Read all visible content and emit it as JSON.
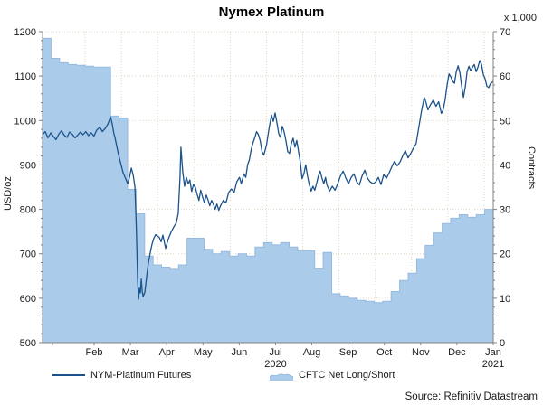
{
  "chart": {
    "title": "Nymex Platinum",
    "unit_note": "x 1,000",
    "left_axis_label": "USD/oz",
    "right_axis_label": "Contracts",
    "legend": {
      "series1_label": "NYM-Platinum Futures",
      "series2_label": "CFTC Net Long/Short"
    },
    "source": "Source: Refinitiv Datastream",
    "colors": {
      "line": "#1b528b",
      "area_fill": "#aacbea",
      "area_stroke": "#94bbe0",
      "grid": "#dbd7c2",
      "axis": "#808080"
    }
  },
  "chart_data": {
    "type": "line+area",
    "title": "Nymex Platinum",
    "left_axis": {
      "label": "USD/oz",
      "min": 500,
      "max": 1200,
      "step": 100,
      "minor_step": 20,
      "tick_labels": [
        "500",
        "600",
        "700",
        "800",
        "900",
        "1000",
        "1100",
        "1200"
      ]
    },
    "right_axis": {
      "label": "Contracts",
      "unit": "x 1,000",
      "min": 0,
      "max": 70,
      "step": 10,
      "minor_step": 2,
      "tick_labels": [
        "0",
        "10",
        "20",
        "30",
        "40",
        "50",
        "60",
        "70"
      ]
    },
    "x_axis": {
      "months": [
        {
          "label": "Feb"
        },
        {
          "label": "Mar"
        },
        {
          "label": "Apr"
        },
        {
          "label": "May"
        },
        {
          "label": "Jun"
        },
        {
          "label": "Jul",
          "year": "2020"
        },
        {
          "label": "Aug"
        },
        {
          "label": "Sep"
        },
        {
          "label": "Oct"
        },
        {
          "label": "Nov"
        },
        {
          "label": "Dec"
        },
        {
          "label": "Jan",
          "year": "2021"
        }
      ],
      "range_note": "late Jan 2020 - late Jan 2021",
      "grid": true
    },
    "series": [
      {
        "name": "NYM-Platinum Futures",
        "type": "line",
        "axis": "left",
        "color": "#1b528b",
        "points": [
          [
            0,
            968
          ],
          [
            0.006,
            975
          ],
          [
            0.012,
            961
          ],
          [
            0.018,
            972
          ],
          [
            0.024,
            964
          ],
          [
            0.03,
            957
          ],
          [
            0.036,
            969
          ],
          [
            0.042,
            977
          ],
          [
            0.048,
            967
          ],
          [
            0.054,
            962
          ],
          [
            0.06,
            974
          ],
          [
            0.066,
            969
          ],
          [
            0.072,
            961
          ],
          [
            0.078,
            967
          ],
          [
            0.084,
            974
          ],
          [
            0.09,
            968
          ],
          [
            0.096,
            975
          ],
          [
            0.102,
            966
          ],
          [
            0.108,
            972
          ],
          [
            0.114,
            965
          ],
          [
            0.12,
            978
          ],
          [
            0.127,
            985
          ],
          [
            0.133,
            975
          ],
          [
            0.139,
            982
          ],
          [
            0.145,
            992
          ],
          [
            0.151,
            1008
          ],
          [
            0.155,
            990
          ],
          [
            0.158,
            972
          ],
          [
            0.161,
            960
          ],
          [
            0.167,
            930
          ],
          [
            0.173,
            905
          ],
          [
            0.179,
            882
          ],
          [
            0.185,
            868
          ],
          [
            0.189,
            858
          ],
          [
            0.193,
            872
          ],
          [
            0.197,
            893
          ],
          [
            0.201,
            878
          ],
          [
            0.205,
            850
          ],
          [
            0.208,
            760
          ],
          [
            0.211,
            640
          ],
          [
            0.213,
            598
          ],
          [
            0.215,
            622
          ],
          [
            0.217,
            612
          ],
          [
            0.219,
            643
          ],
          [
            0.221,
            616
          ],
          [
            0.223,
            604
          ],
          [
            0.227,
            613
          ],
          [
            0.231,
            648
          ],
          [
            0.235,
            680
          ],
          [
            0.239,
            702
          ],
          [
            0.243,
            722
          ],
          [
            0.247,
            735
          ],
          [
            0.251,
            743
          ],
          [
            0.259,
            737
          ],
          [
            0.263,
            727
          ],
          [
            0.267,
            742
          ],
          [
            0.273,
            712
          ],
          [
            0.279,
            733
          ],
          [
            0.285,
            748
          ],
          [
            0.291,
            760
          ],
          [
            0.297,
            770
          ],
          [
            0.301,
            790
          ],
          [
            0.305,
            872
          ],
          [
            0.307,
            940
          ],
          [
            0.311,
            885
          ],
          [
            0.315,
            852
          ],
          [
            0.319,
            872
          ],
          [
            0.323,
            858
          ],
          [
            0.327,
            866
          ],
          [
            0.331,
            840
          ],
          [
            0.335,
            856
          ],
          [
            0.339,
            850
          ],
          [
            0.343,
            834
          ],
          [
            0.347,
            820
          ],
          [
            0.351,
            843
          ],
          [
            0.355,
            828
          ],
          [
            0.359,
            815
          ],
          [
            0.363,
            832
          ],
          [
            0.367,
            822
          ],
          [
            0.371,
            808
          ],
          [
            0.375,
            820
          ],
          [
            0.379,
            812
          ],
          [
            0.383,
            800
          ],
          [
            0.387,
            812
          ],
          [
            0.391,
            798
          ],
          [
            0.395,
            808
          ],
          [
            0.401,
            820
          ],
          [
            0.407,
            815
          ],
          [
            0.413,
            838
          ],
          [
            0.419,
            846
          ],
          [
            0.425,
            838
          ],
          [
            0.431,
            862
          ],
          [
            0.437,
            872
          ],
          [
            0.441,
            858
          ],
          [
            0.447,
            880
          ],
          [
            0.451,
            872
          ],
          [
            0.455,
            900
          ],
          [
            0.459,
            912
          ],
          [
            0.463,
            935
          ],
          [
            0.467,
            950
          ],
          [
            0.471,
            962
          ],
          [
            0.475,
            975
          ],
          [
            0.479,
            968
          ],
          [
            0.483,
            955
          ],
          [
            0.487,
            930
          ],
          [
            0.491,
            922
          ],
          [
            0.497,
            945
          ],
          [
            0.503,
            985
          ],
          [
            0.508,
            1012
          ],
          [
            0.512,
            998
          ],
          [
            0.516,
            1017
          ],
          [
            0.52,
            995
          ],
          [
            0.524,
            970
          ],
          [
            0.528,
            962
          ],
          [
            0.532,
            987
          ],
          [
            0.536,
            975
          ],
          [
            0.54,
            955
          ],
          [
            0.544,
            930
          ],
          [
            0.548,
            926
          ],
          [
            0.552,
            948
          ],
          [
            0.556,
            960
          ],
          [
            0.56,
            940
          ],
          [
            0.564,
            955
          ],
          [
            0.568,
            930
          ],
          [
            0.572,
            905
          ],
          [
            0.576,
            869
          ],
          [
            0.58,
            880
          ],
          [
            0.584,
            900
          ],
          [
            0.588,
            875
          ],
          [
            0.592,
            855
          ],
          [
            0.596,
            841
          ],
          [
            0.6,
            852
          ],
          [
            0.604,
            843
          ],
          [
            0.608,
            858
          ],
          [
            0.612,
            875
          ],
          [
            0.616,
            886
          ],
          [
            0.62,
            870
          ],
          [
            0.624,
            858
          ],
          [
            0.628,
            872
          ],
          [
            0.631,
            855
          ],
          [
            0.637,
            841
          ],
          [
            0.643,
            852
          ],
          [
            0.649,
            843
          ],
          [
            0.655,
            858
          ],
          [
            0.661,
            875
          ],
          [
            0.667,
            886
          ],
          [
            0.673,
            870
          ],
          [
            0.679,
            858
          ],
          [
            0.685,
            872
          ],
          [
            0.691,
            880
          ],
          [
            0.697,
            862
          ],
          [
            0.703,
            855
          ],
          [
            0.709,
            875
          ],
          [
            0.715,
            888
          ],
          [
            0.721,
            870
          ],
          [
            0.727,
            862
          ],
          [
            0.733,
            858
          ],
          [
            0.739,
            861
          ],
          [
            0.745,
            872
          ],
          [
            0.751,
            856
          ],
          [
            0.757,
            878
          ],
          [
            0.763,
            870
          ],
          [
            0.769,
            882
          ],
          [
            0.775,
            896
          ],
          [
            0.781,
            908
          ],
          [
            0.787,
            898
          ],
          [
            0.793,
            906
          ],
          [
            0.799,
            920
          ],
          [
            0.805,
            932
          ],
          [
            0.811,
            916
          ],
          [
            0.817,
            926
          ],
          [
            0.823,
            938
          ],
          [
            0.829,
            948
          ],
          [
            0.835,
            985
          ],
          [
            0.841,
            1022
          ],
          [
            0.847,
            1052
          ],
          [
            0.851,
            1040
          ],
          [
            0.855,
            1024
          ],
          [
            0.861,
            1036
          ],
          [
            0.867,
            1046
          ],
          [
            0.873,
            1032
          ],
          [
            0.879,
            1042
          ],
          [
            0.885,
            1016
          ],
          [
            0.889,
            1024
          ],
          [
            0.893,
            1045
          ],
          [
            0.898,
            1082
          ],
          [
            0.902,
            1105
          ],
          [
            0.906,
            1098
          ],
          [
            0.91,
            1088
          ],
          [
            0.914,
            1084
          ],
          [
            0.918,
            1110
          ],
          [
            0.922,
            1123
          ],
          [
            0.926,
            1108
          ],
          [
            0.93,
            1078
          ],
          [
            0.934,
            1052
          ],
          [
            0.938,
            1075
          ],
          [
            0.942,
            1110
          ],
          [
            0.946,
            1122
          ],
          [
            0.95,
            1112
          ],
          [
            0.954,
            1120
          ],
          [
            0.958,
            1126
          ],
          [
            0.962,
            1110
          ],
          [
            0.966,
            1120
          ],
          [
            0.97,
            1135
          ],
          [
            0.974,
            1126
          ],
          [
            0.978,
            1104
          ],
          [
            0.982,
            1094
          ],
          [
            0.986,
            1077
          ],
          [
            0.99,
            1074
          ],
          [
            0.994,
            1083
          ],
          [
            1,
            1088
          ]
        ]
      },
      {
        "name": "CFTC Net Long/Short",
        "type": "step-area",
        "axis": "right",
        "fill": "#aacbea",
        "stroke": "#94bbe0",
        "weekly_values_thousand_contracts": [
          68.5,
          64,
          63,
          62.6,
          62.4,
          62.2,
          62,
          62,
          51,
          50.5,
          34.5,
          29,
          19.5,
          17.5,
          17,
          16.5,
          17.5,
          23.5,
          23.5,
          21,
          20,
          20.5,
          19.5,
          20,
          19.5,
          21.5,
          22.5,
          22,
          22.5,
          21.5,
          20.7,
          20.7,
          16.6,
          20.3,
          11,
          10.5,
          10,
          9.5,
          9.3,
          9,
          9.3,
          11.5,
          14,
          15.6,
          18.9,
          21.9,
          24.7,
          26.8,
          28,
          28.8,
          28.2,
          28.8,
          30
        ]
      }
    ]
  }
}
